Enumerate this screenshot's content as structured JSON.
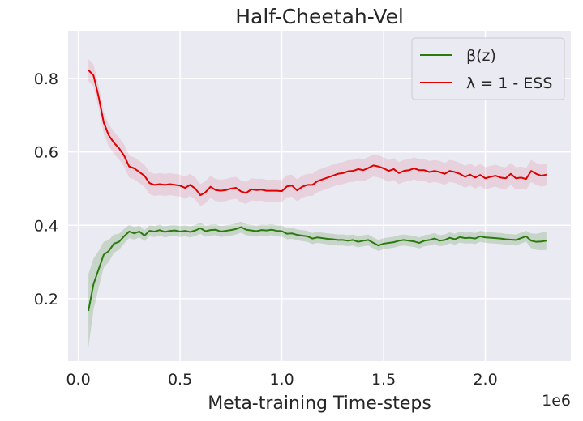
{
  "chart_data": {
    "type": "line",
    "title": "Half-Cheetah-Vel",
    "xlabel": "Meta-training Time-steps",
    "ylabel": "",
    "x_offset_label": "1e6",
    "xlim": [
      -0.05,
      2.42
    ],
    "ylim": [
      0.03,
      0.93
    ],
    "xticks": [
      0.0,
      0.5,
      1.0,
      1.5,
      2.0
    ],
    "xtick_labels": [
      "0.0",
      "0.5",
      "1.0",
      "1.5",
      "2.0"
    ],
    "yticks": [
      0.2,
      0.4,
      0.6,
      0.8
    ],
    "ytick_labels": [
      "0.2",
      "0.4",
      "0.6",
      "0.8"
    ],
    "grid": true,
    "legend_position": "top-right",
    "x": [
      0.05,
      0.075,
      0.1,
      0.125,
      0.15,
      0.175,
      0.2,
      0.225,
      0.25,
      0.275,
      0.3,
      0.325,
      0.35,
      0.375,
      0.4,
      0.425,
      0.45,
      0.475,
      0.5,
      0.525,
      0.55,
      0.575,
      0.6,
      0.625,
      0.65,
      0.675,
      0.7,
      0.725,
      0.75,
      0.775,
      0.8,
      0.825,
      0.85,
      0.875,
      0.9,
      0.925,
      0.95,
      0.975,
      1.0,
      1.025,
      1.05,
      1.075,
      1.1,
      1.125,
      1.15,
      1.175,
      1.2,
      1.225,
      1.25,
      1.275,
      1.3,
      1.325,
      1.35,
      1.375,
      1.4,
      1.425,
      1.45,
      1.475,
      1.5,
      1.525,
      1.55,
      1.575,
      1.6,
      1.625,
      1.65,
      1.675,
      1.7,
      1.725,
      1.75,
      1.775,
      1.8,
      1.825,
      1.85,
      1.875,
      1.9,
      1.925,
      1.95,
      1.975,
      2.0,
      2.025,
      2.05,
      2.075,
      2.1,
      2.125,
      2.15,
      2.175,
      2.2,
      2.225,
      2.25,
      2.275,
      2.3
    ],
    "series": [
      {
        "name": "β(z)",
        "color": "#2a7a0e",
        "band_color": "#2a7a0e",
        "values": [
          0.167,
          0.24,
          0.28,
          0.32,
          0.33,
          0.35,
          0.355,
          0.37,
          0.383,
          0.378,
          0.383,
          0.372,
          0.385,
          0.383,
          0.387,
          0.382,
          0.385,
          0.386,
          0.383,
          0.385,
          0.382,
          0.386,
          0.392,
          0.384,
          0.387,
          0.388,
          0.383,
          0.385,
          0.387,
          0.39,
          0.395,
          0.388,
          0.386,
          0.384,
          0.387,
          0.386,
          0.388,
          0.385,
          0.384,
          0.377,
          0.378,
          0.374,
          0.372,
          0.37,
          0.364,
          0.367,
          0.365,
          0.363,
          0.362,
          0.36,
          0.36,
          0.358,
          0.36,
          0.355,
          0.358,
          0.36,
          0.352,
          0.345,
          0.35,
          0.352,
          0.354,
          0.358,
          0.36,
          0.358,
          0.356,
          0.352,
          0.358,
          0.36,
          0.364,
          0.358,
          0.36,
          0.366,
          0.362,
          0.368,
          0.365,
          0.366,
          0.364,
          0.37,
          0.367,
          0.366,
          0.365,
          0.364,
          0.362,
          0.361,
          0.36,
          0.365,
          0.37,
          0.358,
          0.355,
          0.356,
          0.358
        ],
        "spread": [
          0.1,
          0.07,
          0.05,
          0.035,
          0.03,
          0.025,
          0.022,
          0.02,
          0.018,
          0.017,
          0.016,
          0.015,
          0.015,
          0.015,
          0.015,
          0.015,
          0.015,
          0.015,
          0.015,
          0.015,
          0.015,
          0.015,
          0.015,
          0.015,
          0.015,
          0.015,
          0.015,
          0.015,
          0.015,
          0.015,
          0.015,
          0.015,
          0.015,
          0.015,
          0.015,
          0.015,
          0.015,
          0.015,
          0.015,
          0.015,
          0.015,
          0.015,
          0.015,
          0.015,
          0.015,
          0.015,
          0.015,
          0.015,
          0.015,
          0.015,
          0.015,
          0.015,
          0.015,
          0.015,
          0.015,
          0.015,
          0.015,
          0.015,
          0.015,
          0.015,
          0.015,
          0.015,
          0.015,
          0.015,
          0.015,
          0.015,
          0.015,
          0.015,
          0.015,
          0.015,
          0.015,
          0.015,
          0.015,
          0.015,
          0.015,
          0.015,
          0.015,
          0.015,
          0.015,
          0.015,
          0.015,
          0.015,
          0.015,
          0.015,
          0.015,
          0.015,
          0.015,
          0.02,
          0.022,
          0.024,
          0.025
        ]
      },
      {
        "name": "λ = 1 - ESS",
        "color": "#e00000",
        "band_color": "#e0667a",
        "values": [
          0.823,
          0.808,
          0.75,
          0.68,
          0.645,
          0.625,
          0.61,
          0.59,
          0.56,
          0.555,
          0.545,
          0.535,
          0.515,
          0.51,
          0.512,
          0.51,
          0.512,
          0.51,
          0.508,
          0.502,
          0.51,
          0.5,
          0.482,
          0.49,
          0.505,
          0.496,
          0.494,
          0.496,
          0.5,
          0.502,
          0.492,
          0.488,
          0.498,
          0.496,
          0.497,
          0.494,
          0.494,
          0.494,
          0.493,
          0.506,
          0.508,
          0.495,
          0.505,
          0.51,
          0.51,
          0.52,
          0.525,
          0.53,
          0.535,
          0.54,
          0.542,
          0.547,
          0.548,
          0.553,
          0.55,
          0.556,
          0.563,
          0.56,
          0.555,
          0.548,
          0.553,
          0.542,
          0.548,
          0.55,
          0.555,
          0.55,
          0.55,
          0.545,
          0.548,
          0.545,
          0.54,
          0.548,
          0.545,
          0.54,
          0.532,
          0.538,
          0.53,
          0.537,
          0.528,
          0.532,
          0.535,
          0.53,
          0.528,
          0.54,
          0.528,
          0.53,
          0.526,
          0.548,
          0.54,
          0.535,
          0.538
        ]
      }
    ]
  }
}
